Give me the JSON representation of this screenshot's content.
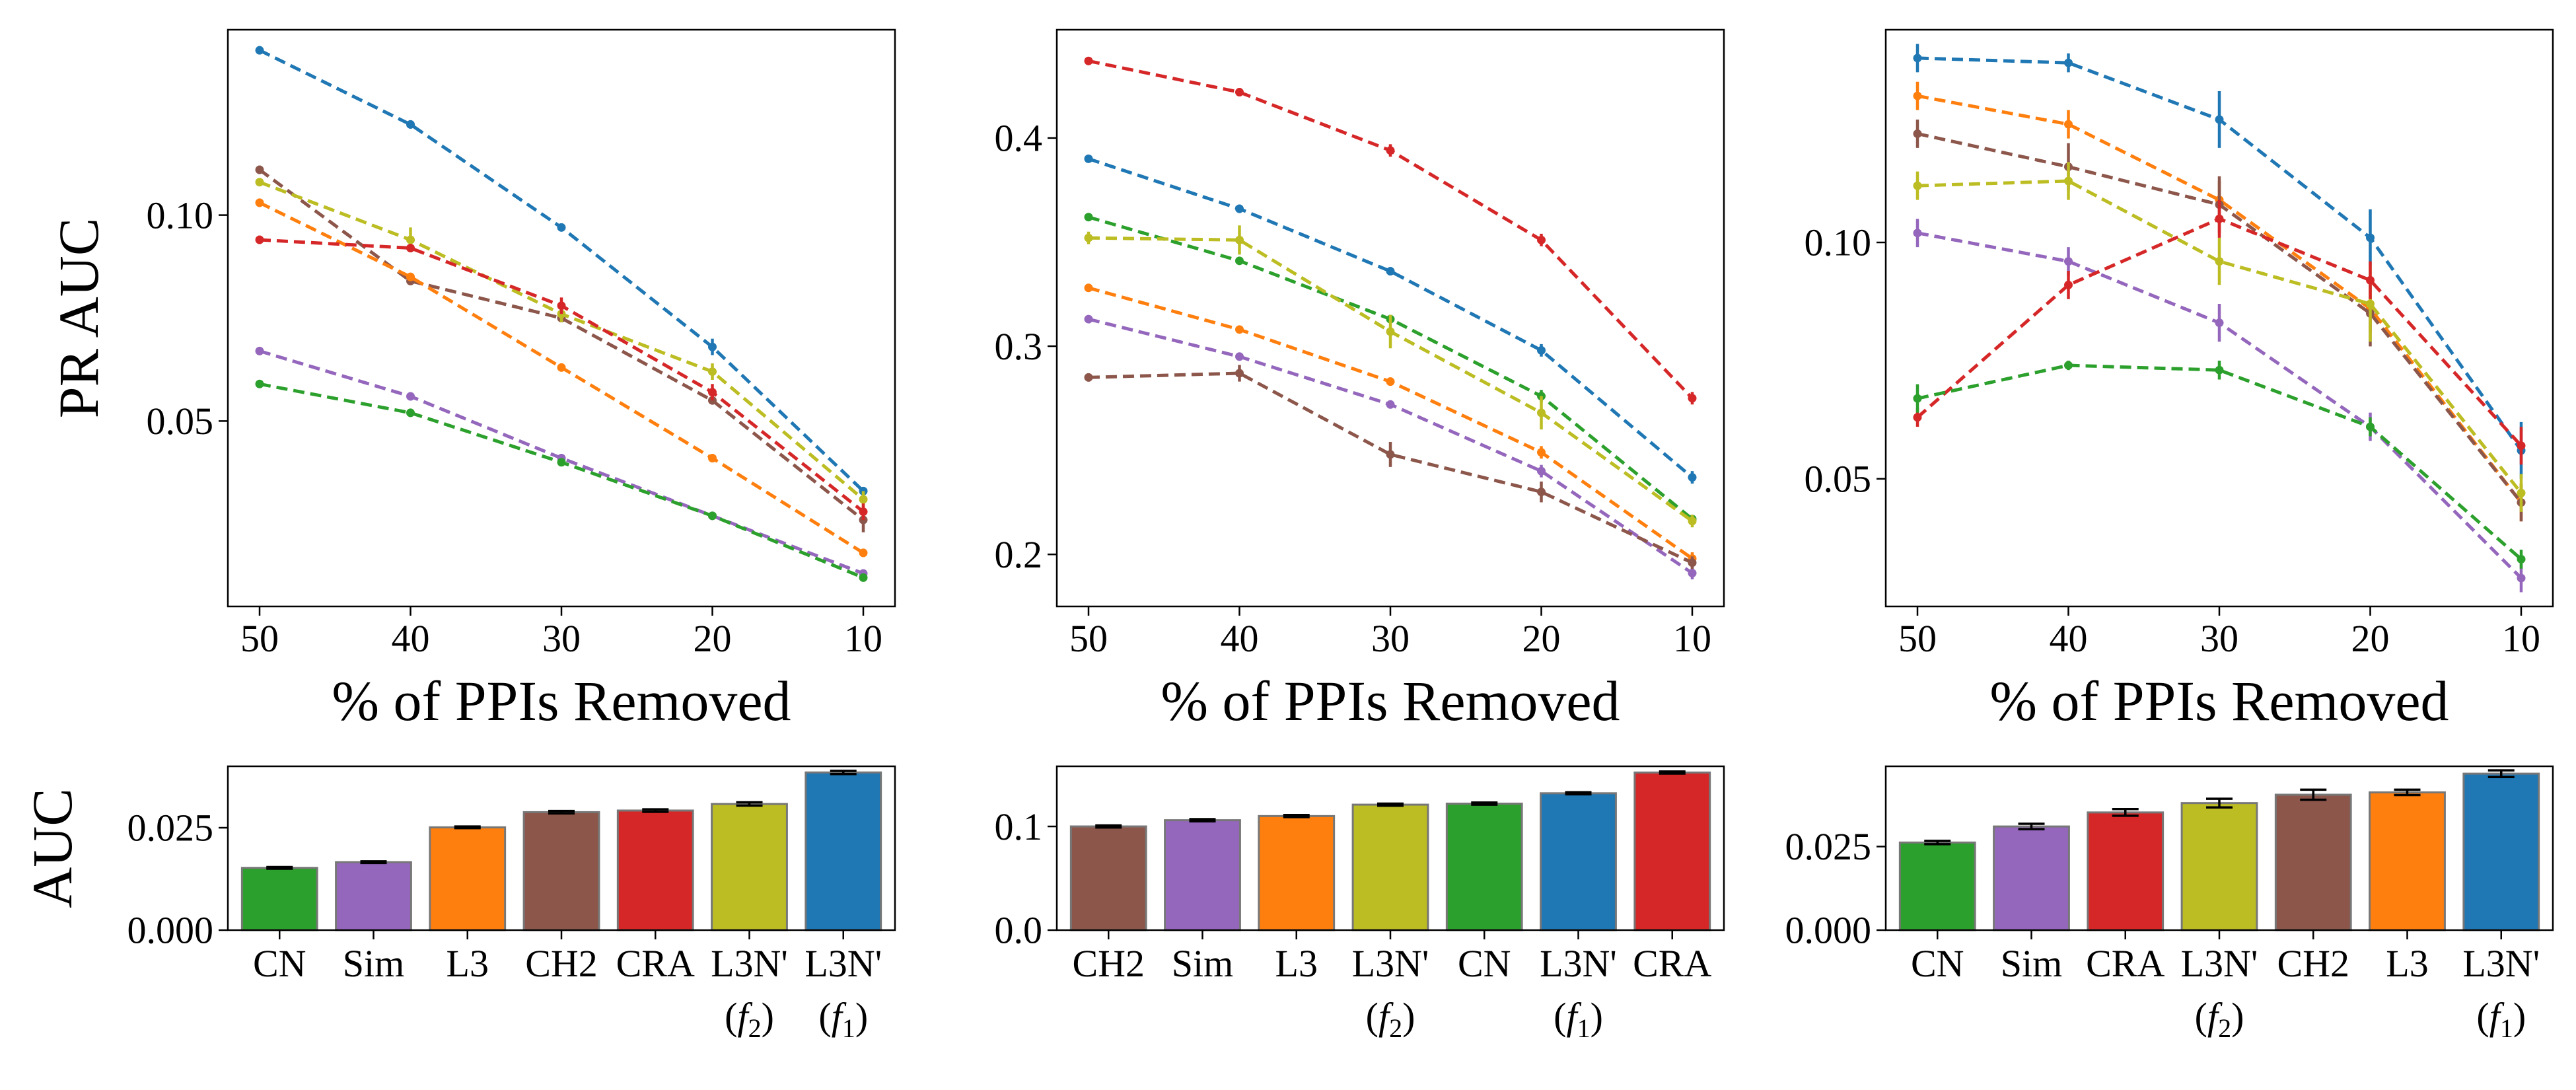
{
  "colors": {
    "L3N'(f1)": "#1f77b4",
    "L3": "#ff7f0e",
    "CN": "#2ca02c",
    "CRA": "#d62728",
    "Sim": "#9467bd",
    "CH2": "#8c564b",
    "L3N'(f2)": "#bcbd22"
  },
  "chart_data": [
    {
      "type": "line",
      "panel": "top-left",
      "xlabel": "% of PPIs Removed",
      "ylabel": "PR AUC",
      "x": [
        50,
        40,
        30,
        20,
        10
      ],
      "xticks": [
        "50",
        "40",
        "30",
        "20",
        "10"
      ],
      "yticks": [
        "0.05",
        "0.10"
      ],
      "ytick_values": [
        0.05,
        0.1
      ],
      "ylim": [
        0.005,
        0.145
      ],
      "grid": false,
      "series": [
        {
          "key": "L3N'(f1)",
          "values": [
            0.14,
            0.122,
            0.097,
            0.068,
            0.033
          ],
          "err": [
            0.001,
            0.001,
            0.001,
            0.002,
            0.001
          ]
        },
        {
          "key": "CH2",
          "values": [
            0.111,
            0.084,
            0.075,
            0.055,
            0.026
          ],
          "err": [
            0.001,
            0.001,
            0.001,
            0.001,
            0.003
          ]
        },
        {
          "key": "L3N'(f2)",
          "values": [
            0.108,
            0.094,
            0.076,
            0.062,
            0.031
          ],
          "err": [
            0.001,
            0.003,
            0.002,
            0.002,
            0.002
          ]
        },
        {
          "key": "L3",
          "values": [
            0.103,
            0.085,
            0.063,
            0.041,
            0.018
          ],
          "err": [
            0.001,
            0.001,
            0.001,
            0.001,
            0.001
          ]
        },
        {
          "key": "CRA",
          "values": [
            0.094,
            0.092,
            0.078,
            0.057,
            0.028
          ],
          "err": [
            0.001,
            0.001,
            0.002,
            0.002,
            0.002
          ]
        },
        {
          "key": "Sim",
          "values": [
            0.067,
            0.056,
            0.041,
            0.027,
            0.013
          ],
          "err": [
            0.001,
            0.001,
            0.001,
            0.001,
            0.001
          ]
        },
        {
          "key": "CN",
          "values": [
            0.059,
            0.052,
            0.04,
            0.027,
            0.012
          ],
          "err": [
            0.001,
            0.001,
            0.001,
            0.001,
            0.001
          ]
        }
      ]
    },
    {
      "type": "line",
      "panel": "top-middle",
      "xlabel": "% of PPIs Removed",
      "ylabel": "",
      "x": [
        50,
        40,
        30,
        20,
        10
      ],
      "xticks": [
        "50",
        "40",
        "30",
        "20",
        "10"
      ],
      "yticks": [
        "0.2",
        "0.3",
        "0.4"
      ],
      "ytick_values": [
        0.2,
        0.3,
        0.4
      ],
      "ylim": [
        0.175,
        0.452
      ],
      "grid": false,
      "series": [
        {
          "key": "CRA",
          "values": [
            0.437,
            0.422,
            0.394,
            0.351,
            0.275
          ],
          "err": [
            0.001,
            0.002,
            0.003,
            0.003,
            0.003
          ]
        },
        {
          "key": "L3N'(f1)",
          "values": [
            0.39,
            0.366,
            0.336,
            0.298,
            0.237
          ],
          "err": [
            0.001,
            0.002,
            0.002,
            0.003,
            0.003
          ]
        },
        {
          "key": "CN",
          "values": [
            0.362,
            0.341,
            0.313,
            0.276,
            0.217
          ],
          "err": [
            0.001,
            0.001,
            0.002,
            0.003,
            0.002
          ]
        },
        {
          "key": "L3N'(f2)",
          "values": [
            0.352,
            0.351,
            0.307,
            0.268,
            0.216
          ],
          "err": [
            0.003,
            0.007,
            0.008,
            0.008,
            0.003
          ]
        },
        {
          "key": "L3",
          "values": [
            0.328,
            0.308,
            0.283,
            0.249,
            0.198
          ],
          "err": [
            0.001,
            0.001,
            0.002,
            0.003,
            0.003
          ]
        },
        {
          "key": "Sim",
          "values": [
            0.313,
            0.295,
            0.272,
            0.24,
            0.191
          ],
          "err": [
            0.001,
            0.001,
            0.002,
            0.003,
            0.003
          ]
        },
        {
          "key": "CH2",
          "values": [
            0.285,
            0.287,
            0.248,
            0.23,
            0.196
          ],
          "err": [
            0.002,
            0.004,
            0.006,
            0.005,
            0.003
          ]
        }
      ]
    },
    {
      "type": "line",
      "panel": "top-right",
      "xlabel": "% of PPIs Removed",
      "ylabel": "",
      "x": [
        50,
        40,
        30,
        20,
        10
      ],
      "xticks": [
        "50",
        "40",
        "30",
        "20",
        "10"
      ],
      "yticks": [
        "0.05",
        "0.10"
      ],
      "ytick_values": [
        0.05,
        0.1
      ],
      "ylim": [
        0.023,
        0.145
      ],
      "grid": false,
      "series": [
        {
          "key": "L3N'(f1)",
          "values": [
            0.139,
            0.138,
            0.126,
            0.101,
            0.056
          ],
          "err": [
            0.003,
            0.002,
            0.006,
            0.006,
            0.006
          ]
        },
        {
          "key": "L3",
          "values": [
            0.131,
            0.125,
            0.109,
            0.086,
            0.045
          ],
          "err": [
            0.003,
            0.003,
            0.004,
            0.005,
            0.004
          ]
        },
        {
          "key": "CH2",
          "values": [
            0.123,
            0.116,
            0.108,
            0.085,
            0.045
          ],
          "err": [
            0.003,
            0.005,
            0.006,
            0.007,
            0.004
          ]
        },
        {
          "key": "L3N'(f2)",
          "values": [
            0.112,
            0.113,
            0.096,
            0.087,
            0.047
          ],
          "err": [
            0.003,
            0.004,
            0.005,
            0.008,
            0.004
          ]
        },
        {
          "key": "Sim",
          "values": [
            0.102,
            0.096,
            0.083,
            0.061,
            0.029
          ],
          "err": [
            0.003,
            0.003,
            0.004,
            0.003,
            0.003
          ]
        },
        {
          "key": "CRA",
          "values": [
            0.063,
            0.091,
            0.105,
            0.092,
            0.057
          ],
          "err": [
            0.002,
            0.003,
            0.004,
            0.004,
            0.004
          ]
        },
        {
          "key": "CN",
          "values": [
            0.067,
            0.074,
            0.073,
            0.061,
            0.033
          ],
          "err": [
            0.003,
            0.001,
            0.002,
            0.002,
            0.002
          ]
        }
      ]
    },
    {
      "type": "bar",
      "panel": "bottom-left",
      "ylabel": "AUC",
      "categories": [
        "CN",
        "Sim",
        "L3",
        "CH2",
        "CRA",
        "L3N'\n(f2)",
        "L3N'\n(f1)"
      ],
      "keys": [
        "CN",
        "Sim",
        "L3",
        "CH2",
        "CRA",
        "L3N'(f2)",
        "L3N'(f1)"
      ],
      "values": [
        0.0152,
        0.0166,
        0.0251,
        0.0288,
        0.0292,
        0.0308,
        0.0385
      ],
      "err": [
        0.0002,
        0.0002,
        0.0002,
        0.0003,
        0.0003,
        0.0004,
        0.0004
      ],
      "yticks": [
        "0.000",
        "0.025"
      ],
      "ytick_values": [
        0.0,
        0.025
      ],
      "ylim": [
        0,
        0.04
      ]
    },
    {
      "type": "bar",
      "panel": "bottom-middle",
      "ylabel": "",
      "categories": [
        "CH2",
        "Sim",
        "L3",
        "L3N'\n(f2)",
        "CN",
        "L3N'\n(f1)",
        "CRA"
      ],
      "keys": [
        "CH2",
        "Sim",
        "L3",
        "L3N'(f2)",
        "CN",
        "L3N'(f1)",
        "CRA"
      ],
      "values": [
        0.1,
        0.106,
        0.11,
        0.121,
        0.122,
        0.132,
        0.152
      ],
      "err": [
        0.001,
        0.001,
        0.001,
        0.001,
        0.001,
        0.001,
        0.001
      ],
      "yticks": [
        "0.0",
        "0.1"
      ],
      "ytick_values": [
        0.0,
        0.1
      ],
      "ylim": [
        0,
        0.158
      ]
    },
    {
      "type": "bar",
      "panel": "bottom-right",
      "ylabel": "",
      "categories": [
        "CN",
        "Sim",
        "CRA",
        "L3N'\n(f2)",
        "CH2",
        "L3",
        "L3N'\n(f1)"
      ],
      "keys": [
        "CN",
        "Sim",
        "CRA",
        "L3N'(f2)",
        "CH2",
        "L3",
        "L3N'(f1)"
      ],
      "values": [
        0.0262,
        0.031,
        0.0352,
        0.038,
        0.0405,
        0.0412,
        0.0468
      ],
      "err": [
        0.0005,
        0.0008,
        0.001,
        0.0013,
        0.0015,
        0.0008,
        0.001
      ],
      "yticks": [
        "0.000",
        "0.025"
      ],
      "ytick_values": [
        0.0,
        0.025
      ],
      "ylim": [
        0,
        0.049
      ]
    }
  ]
}
